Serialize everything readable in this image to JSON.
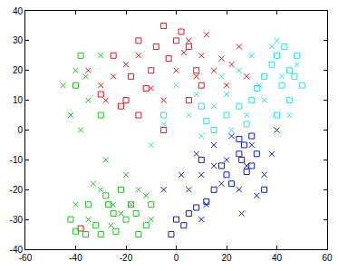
{
  "chart_data": {
    "type": "scatter",
    "xlim": [
      -60,
      60
    ],
    "ylim": [
      -40,
      40
    ],
    "xticks": [
      -60,
      -40,
      -20,
      0,
      20,
      40,
      60
    ],
    "yticks": [
      -40,
      -30,
      -20,
      -10,
      0,
      10,
      20,
      30,
      40
    ],
    "grid": false,
    "series": [
      {
        "color": "#e8141c",
        "marker": "x",
        "x": [
          -35,
          -30,
          -15,
          5,
          10,
          15,
          20,
          25,
          -5,
          -25,
          -20,
          0,
          12,
          18,
          -10,
          22,
          8,
          -28,
          28,
          3
        ],
        "values": [
          20,
          15,
          25,
          30,
          25,
          20,
          15,
          28,
          10,
          18,
          22,
          20,
          32,
          24,
          14,
          22,
          18,
          10,
          18,
          26
        ]
      },
      {
        "color": "#e8141c",
        "marker": "square",
        "x": [
          -15,
          -5,
          0,
          5,
          -10,
          -20,
          -15,
          -5,
          5,
          -25,
          -38,
          -8,
          2,
          -12,
          -18,
          8,
          -3,
          -22,
          10,
          -30
        ],
        "values": [
          30,
          35,
          30,
          28,
          20,
          10,
          5,
          0,
          10,
          25,
          -33,
          28,
          33,
          14,
          18,
          20,
          24,
          8,
          15,
          12
        ]
      },
      {
        "color": "#22c022",
        "marker": "x",
        "x": [
          -40,
          -35,
          -42,
          -30,
          -25,
          -35,
          -20,
          -15,
          -30,
          -10,
          -45,
          -38,
          -28,
          -22,
          -18,
          -33,
          -40,
          -12,
          -26,
          -36
        ],
        "values": [
          20,
          10,
          5,
          -20,
          -25,
          -30,
          -15,
          -20,
          25,
          -30,
          15,
          0,
          -10,
          -28,
          -25,
          -18,
          -25,
          -22,
          -32,
          18
        ]
      },
      {
        "color": "#22c022",
        "marker": "square",
        "x": [
          -38,
          -40,
          -30,
          -25,
          -30,
          -20,
          -15,
          -10,
          -35,
          -22,
          -42,
          -28,
          -18,
          -32,
          -24,
          -36,
          -12,
          -27,
          -16,
          -40
        ],
        "values": [
          25,
          15,
          5,
          -28,
          -35,
          -30,
          -35,
          -25,
          -25,
          -20,
          -30,
          -22,
          -25,
          -32,
          -34,
          -35,
          -32,
          -25,
          -28,
          -34
        ]
      },
      {
        "color": "#33dede",
        "marker": "x",
        "x": [
          30,
          25,
          35,
          20,
          5,
          -10,
          10,
          38,
          45,
          0,
          15,
          28,
          42,
          22,
          8,
          33,
          48,
          -5,
          18,
          40
        ],
        "values": [
          25,
          20,
          10,
          12,
          5,
          -5,
          -2,
          28,
          5,
          15,
          8,
          5,
          18,
          0,
          12,
          15,
          22,
          2,
          18,
          30
        ]
      },
      {
        "color": "#33dede",
        "marker": "square",
        "x": [
          40,
          45,
          50,
          35,
          30,
          20,
          10,
          45,
          40,
          15,
          -5,
          48,
          43,
          38,
          25,
          32,
          47,
          12,
          28,
          42
        ],
        "values": [
          25,
          20,
          15,
          18,
          10,
          5,
          8,
          10,
          5,
          0,
          5,
          25,
          28,
          22,
          8,
          14,
          18,
          3,
          2,
          15
        ]
      },
      {
        "color": "#0a1ec8",
        "marker": "x",
        "x": [
          10,
          15,
          20,
          5,
          30,
          25,
          35,
          12,
          -5,
          40,
          18,
          28,
          22,
          8,
          32,
          15,
          2,
          26,
          38,
          10
        ],
        "values": [
          -15,
          -5,
          -10,
          -20,
          -5,
          -20,
          -15,
          -25,
          -20,
          0,
          -18,
          -12,
          -2,
          -8,
          -22,
          -12,
          -15,
          -28,
          -8,
          -30
        ]
      },
      {
        "color": "#0a1ec8",
        "marker": "square",
        "x": [
          25,
          30,
          20,
          15,
          5,
          0,
          25,
          35,
          10,
          -2,
          27,
          32,
          22,
          18,
          3,
          28,
          12,
          30,
          8,
          26
        ],
        "values": [
          -8,
          -12,
          -15,
          -20,
          -28,
          -30,
          -3,
          -20,
          -10,
          -35,
          -5,
          -8,
          -18,
          -12,
          -32,
          -14,
          -24,
          -2,
          -26,
          -10
        ]
      }
    ]
  }
}
